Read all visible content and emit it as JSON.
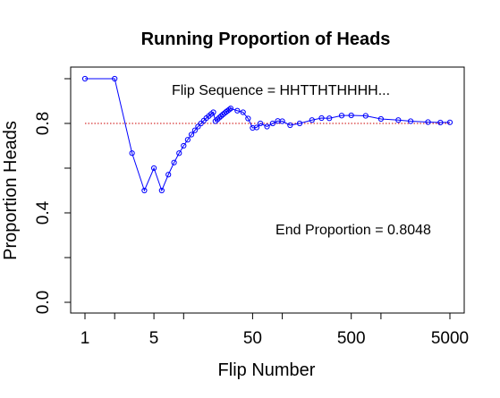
{
  "chart_data": {
    "type": "line",
    "title": "Running Proportion of Heads",
    "xlabel": "Flip Number",
    "ylabel": "Proportion Heads",
    "x_scale": "log",
    "xlim": [
      1,
      5000
    ],
    "ylim": [
      0.0,
      1.0
    ],
    "x_ticks": [
      1,
      2,
      5,
      10,
      50,
      100,
      500,
      1000,
      5000
    ],
    "x_tick_labels": [
      "1",
      "",
      "5",
      "",
      "50",
      "",
      "500",
      "",
      "5000"
    ],
    "y_ticks": [
      0.0,
      0.2,
      0.4,
      0.6,
      0.8,
      1.0
    ],
    "y_tick_labels": [
      "0.0",
      "",
      "0.4",
      "",
      "0.8",
      ""
    ],
    "reference_line": {
      "y": 0.8,
      "color": "#cc0000",
      "style": "dotted"
    },
    "sequence_label": "Flip Sequence = HHTTHTHHHH...",
    "end_label": "End Proportion =  0.8048",
    "series_color": "#0000ff",
    "series": [
      {
        "x": [
          1,
          2,
          3,
          4,
          5,
          6,
          7,
          8,
          9,
          10,
          11,
          12,
          13,
          14,
          15,
          16,
          17,
          18,
          19,
          20,
          21,
          22,
          23,
          24,
          25,
          26,
          27,
          28,
          29,
          30,
          35,
          40,
          45,
          50,
          55,
          60,
          70,
          80,
          90,
          100,
          120,
          150,
          200,
          250,
          300,
          400,
          500,
          700,
          1000,
          1500,
          2000,
          3000,
          4000,
          5000
        ],
        "y": [
          1.0,
          1.0,
          0.667,
          0.5,
          0.6,
          0.5,
          0.571,
          0.625,
          0.667,
          0.7,
          0.727,
          0.75,
          0.769,
          0.786,
          0.8,
          0.8125,
          0.824,
          0.833,
          0.842,
          0.85,
          0.81,
          0.818,
          0.826,
          0.833,
          0.84,
          0.846,
          0.852,
          0.857,
          0.862,
          0.867,
          0.857,
          0.85,
          0.822,
          0.78,
          0.782,
          0.8,
          0.786,
          0.8,
          0.811,
          0.81,
          0.792,
          0.8,
          0.815,
          0.824,
          0.823,
          0.835,
          0.836,
          0.834,
          0.82,
          0.815,
          0.81,
          0.806,
          0.804,
          0.8048
        ]
      }
    ]
  }
}
